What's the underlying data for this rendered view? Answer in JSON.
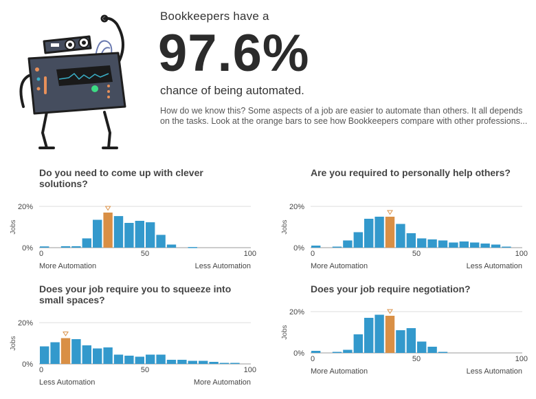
{
  "header": {
    "lead": "Bookkeepers have a",
    "percentage": "97.6%",
    "tail": "chance of being automated.",
    "description": "How do we know this? Some aspects of a job are easier to automate than others. It all depends on the tasks. Look at the orange bars to see how Bookkeepers compare with other professions..."
  },
  "colors": {
    "bar": "#3399cc",
    "highlight": "#d98f45",
    "axis": "#999999",
    "grid": "#dddddd",
    "marker": "#d98f45"
  },
  "chart_data": [
    {
      "type": "bar",
      "title": "Do you need to come up with clever solutions?",
      "ylabel": "Jobs",
      "ytick_labels": [
        "20%",
        "0%"
      ],
      "xtick_labels": [
        "0",
        "50",
        "100"
      ],
      "xlim": [
        0,
        100
      ],
      "ylim": [
        0,
        20
      ],
      "left_label": "More Automation",
      "right_label": "Less Automation",
      "bin_width": 5,
      "values": [
        0.6,
        0,
        0.7,
        0.7,
        4.5,
        13.5,
        17,
        15.3,
        12,
        13,
        12.3,
        6.2,
        1.5,
        0,
        0.3,
        0,
        0,
        0,
        0,
        0
      ],
      "highlight_index": 6
    },
    {
      "type": "bar",
      "title": "Are you required to personally help others?",
      "ylabel": "Jobs",
      "ytick_labels": [
        "20%",
        "0%"
      ],
      "xtick_labels": [
        "0",
        "50",
        "100"
      ],
      "xlim": [
        0,
        100
      ],
      "ylim": [
        0,
        20
      ],
      "left_label": "More Automation",
      "right_label": "Less Automation",
      "bin_width": 5,
      "values": [
        1,
        0,
        0.5,
        3.5,
        7.5,
        14,
        15,
        15,
        11.5,
        7,
        4.5,
        4,
        3.5,
        2.5,
        3,
        2.5,
        2,
        1.5,
        0.5,
        0
      ],
      "highlight_index": 7
    },
    {
      "type": "bar",
      "title": "Does your job require you to squeeze into small spaces?",
      "ylabel": "Jobs",
      "ytick_labels": [
        "20%",
        "0%"
      ],
      "xtick_labels": [
        "0",
        "50",
        "100"
      ],
      "xlim": [
        0,
        100
      ],
      "ylim": [
        0,
        20
      ],
      "left_label": "Less Automation",
      "right_label": "More Automation",
      "bin_width": 5,
      "values": [
        8.5,
        10.5,
        12.5,
        12,
        9,
        7.5,
        8,
        4.5,
        4,
        3.5,
        4.5,
        4.5,
        2,
        2,
        1.5,
        1.5,
        1,
        0.5,
        0.5,
        0
      ],
      "highlight_index": 2
    },
    {
      "type": "bar",
      "title": "Does your job require negotiation?",
      "ylabel": "Jobs",
      "ytick_labels": [
        "20%",
        "0%"
      ],
      "xtick_labels": [
        "0",
        "50",
        "100"
      ],
      "xlim": [
        0,
        100
      ],
      "ylim": [
        0,
        20
      ],
      "left_label": "More Automation",
      "right_label": "Less Automation",
      "bin_width": 5,
      "values": [
        1,
        0,
        0.5,
        1.5,
        9,
        17,
        18.5,
        18,
        11,
        12,
        5.5,
        3,
        0.5,
        0,
        0,
        0,
        0,
        0,
        0,
        0
      ],
      "highlight_index": 7
    }
  ]
}
